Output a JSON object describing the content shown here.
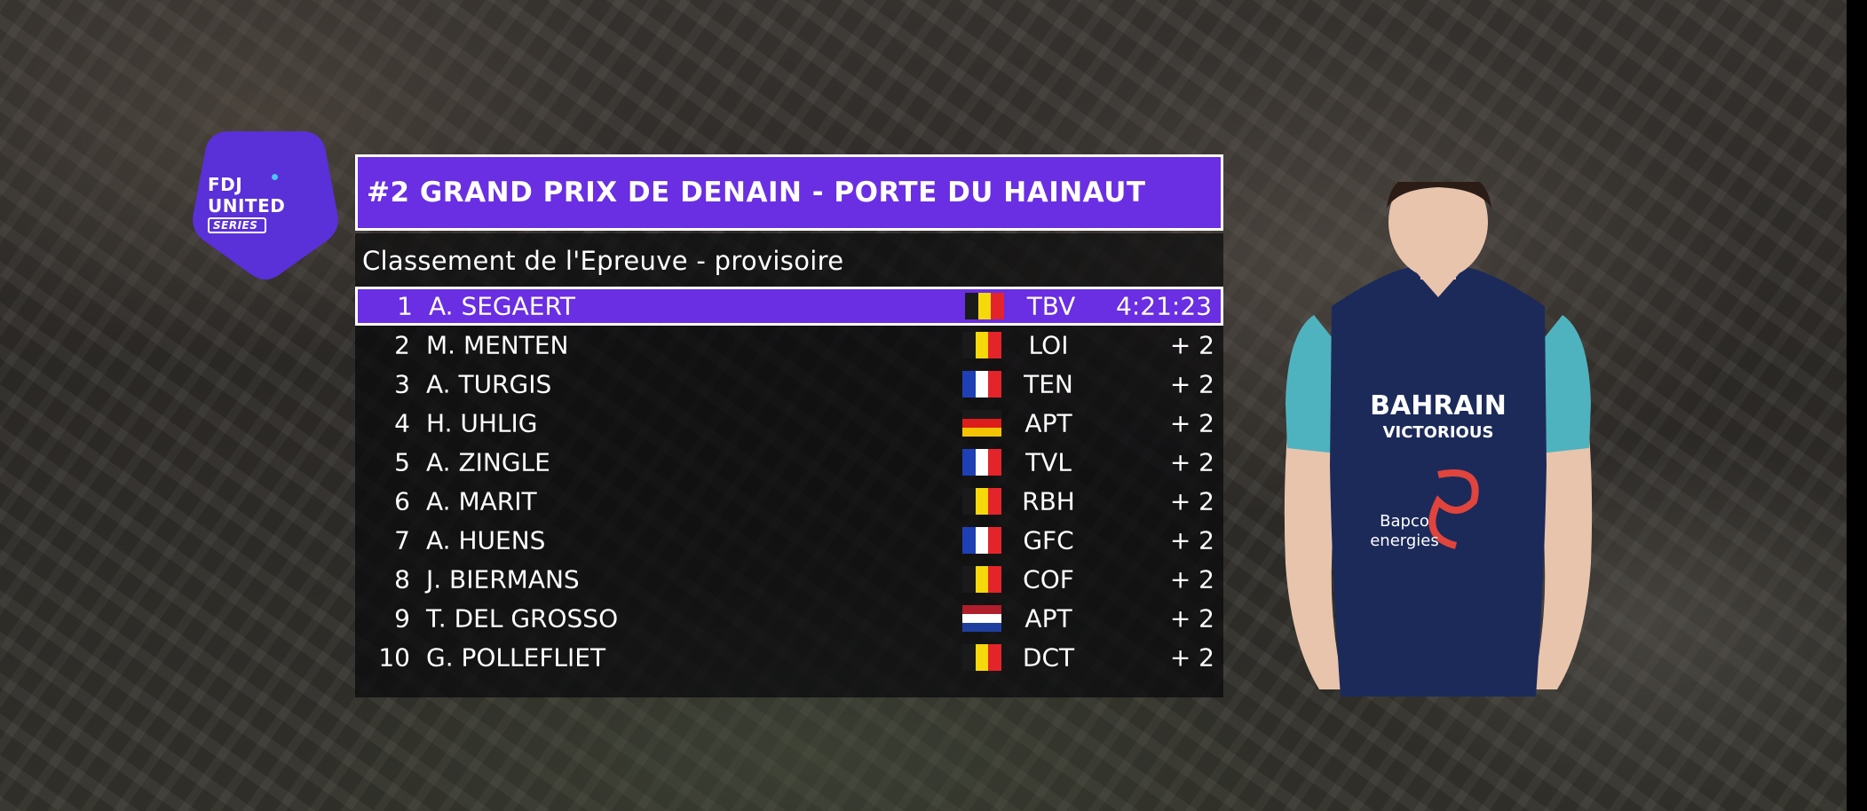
{
  "logo": {
    "line1": "FDJ",
    "line2": "UNITED",
    "line3": "SERIES",
    "color": "#5a30d8"
  },
  "race": {
    "title": "#2 GRAND PRIX DE DENAIN - PORTE DU HAINAUT"
  },
  "standings": {
    "subtitle": "Classement de l'Epreuve - provisoire",
    "rows": [
      {
        "rank": "1",
        "name": "A. SEGAERT",
        "flag": "belgium-flag-icon",
        "team": "TBV",
        "time": "4:21:23"
      },
      {
        "rank": "2",
        "name": "M. MENTEN",
        "flag": "belgium-flag-icon",
        "team": "LOI",
        "time": "+ 2"
      },
      {
        "rank": "3",
        "name": "A. TURGIS",
        "flag": "france-flag-icon",
        "team": "TEN",
        "time": "+ 2"
      },
      {
        "rank": "4",
        "name": "H. UHLIG",
        "flag": "germany-flag-icon",
        "team": "APT",
        "time": "+ 2"
      },
      {
        "rank": "5",
        "name": "A. ZINGLE",
        "flag": "france-flag-icon",
        "team": "TVL",
        "time": "+ 2"
      },
      {
        "rank": "6",
        "name": "A. MARIT",
        "flag": "belgium-flag-icon",
        "team": "RBH",
        "time": "+ 2"
      },
      {
        "rank": "7",
        "name": "A. HUENS",
        "flag": "france-flag-icon",
        "team": "GFC",
        "time": "+ 2"
      },
      {
        "rank": "8",
        "name": "J. BIERMANS",
        "flag": "belgium-flag-icon",
        "team": "COF",
        "time": "+ 2"
      },
      {
        "rank": "9",
        "name": "T. DEL GROSSO",
        "flag": "netherlands-flag-icon",
        "team": "APT",
        "time": "+ 2"
      },
      {
        "rank": "10",
        "name": "G. POLLEFLIET",
        "flag": "belgium-flag-icon",
        "team": "DCT",
        "time": "+ 2"
      }
    ]
  },
  "rider": {
    "jersey_line1": "BAHRAIN",
    "jersey_line2": "VICTORIOUS",
    "jersey_sponsor1": "Bapco",
    "jersey_sponsor2": "energies"
  },
  "colors": {
    "accent": "#6a2ee3",
    "panel": "#0a0a0c"
  }
}
